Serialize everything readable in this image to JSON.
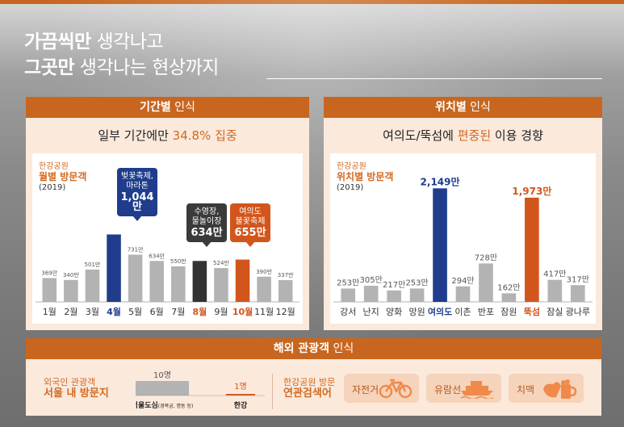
{
  "headline": {
    "line1_bold": "가끔씩만",
    "line1_rest": " 생각나고",
    "line2_bold": "그곳만",
    "line2_rest": " 생각나는 현상까지"
  },
  "colors": {
    "accent": "#c8661f",
    "highlight_blue": "#1f3d8c",
    "dark": "#333333",
    "gray_bar": "#b3b3b3",
    "orange_bar": "#d2561c"
  },
  "left_panel": {
    "header_bold": "기간별",
    "header_rest": " 인식",
    "subtitle_pre": "일부 기간에만 ",
    "subtitle_hl": "34.8% 집중",
    "caption_line1": "한강공원",
    "caption_line2": "월별 방문객",
    "caption_year": "(2019)",
    "callouts": [
      {
        "text1": "벚꽃축제,",
        "text2": "마라톤",
        "value": "1,044만"
      },
      {
        "text1": "수영장,",
        "text2": "물놀이장",
        "value": "634만"
      },
      {
        "text1": "여의도",
        "text2": "불꽃축제",
        "value": "655만"
      }
    ]
  },
  "right_panel": {
    "header_bold": "위치별",
    "header_rest": " 인식",
    "subtitle_pre": "여의도/뚝섬에 ",
    "subtitle_hl": "편중된",
    "subtitle_post": " 이용 경향",
    "caption_line1": "한강공원",
    "caption_line2": "위치별 방문객",
    "caption_year": "(2019)"
  },
  "bottom_panel": {
    "header_bold": "해외 관광객",
    "header_rest": " 인식",
    "left_caption1": "외국인 관광객",
    "left_caption2": "서울 내 방문지",
    "bar1_value": "10명",
    "bar1_label": "서울도심",
    "bar1_sub": "(경복궁, 명동 등)",
    "bar2_value": "1명",
    "bar2_label": "한강",
    "kw_caption1": "한강공원 방문",
    "kw_caption2": "연관검색어",
    "keywords": [
      {
        "label": "자전거",
        "icon": "bicycle-icon"
      },
      {
        "label": "유람선",
        "icon": "ship-icon"
      },
      {
        "label": "치맥",
        "icon": "beer-chicken-icon"
      }
    ]
  },
  "chart_data": [
    {
      "type": "bar",
      "title": "한강공원 월별 방문객 (2019)",
      "categories": [
        "1월",
        "2월",
        "3월",
        "4월",
        "5월",
        "6월",
        "7월",
        "8월",
        "9월",
        "10월",
        "11월",
        "12월"
      ],
      "values": [
        369,
        340,
        501,
        1044,
        731,
        634,
        550,
        634,
        524,
        655,
        390,
        337
      ],
      "value_labels": [
        "369만",
        "340만",
        "501만",
        "1,044만",
        "731만",
        "634만",
        "550만",
        "634만",
        "524만",
        "655만",
        "390만",
        "337만"
      ],
      "highlight": {
        "3": "blue",
        "7": "dark",
        "9": "orange"
      },
      "ylim": [
        0,
        1100
      ]
    },
    {
      "type": "bar",
      "title": "한강공원 위치별 방문객 (2019)",
      "categories": [
        "강서",
        "난지",
        "양화",
        "망원",
        "여의도",
        "이촌",
        "반포",
        "잠원",
        "뚝섬",
        "잠실",
        "광나루"
      ],
      "values": [
        253,
        305,
        217,
        253,
        2149,
        294,
        728,
        162,
        1973,
        417,
        317
      ],
      "value_labels": [
        "253만",
        "305만",
        "217만",
        "253만",
        "2,149만",
        "294만",
        "728만",
        "162만",
        "1,973만",
        "417만",
        "317만"
      ],
      "highlight": {
        "4": "blue",
        "8": "orange"
      },
      "ylim": [
        0,
        2200
      ]
    }
  ]
}
